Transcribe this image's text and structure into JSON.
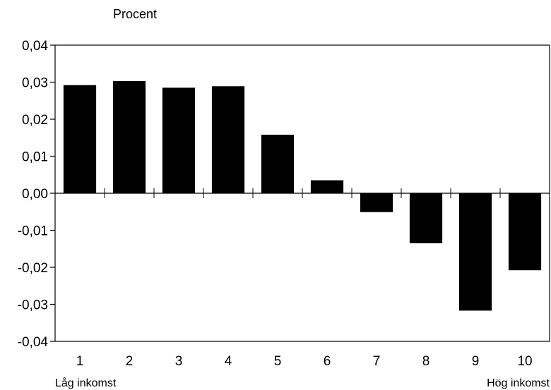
{
  "chart_data": {
    "type": "bar",
    "ylabel": "Procent",
    "categories": [
      "1",
      "2",
      "3",
      "4",
      "5",
      "6",
      "7",
      "8",
      "9",
      "10"
    ],
    "values": [
      0.0292,
      0.0303,
      0.0285,
      0.0289,
      0.0158,
      0.0035,
      -0.0051,
      -0.0135,
      -0.0317,
      -0.0208
    ],
    "ylim": [
      -0.04,
      0.04
    ],
    "yticks": [
      0.04,
      0.03,
      0.02,
      0.01,
      0.0,
      -0.01,
      -0.02,
      -0.03,
      -0.04
    ],
    "ytick_labels": [
      "0,04",
      "0,03",
      "0,02",
      "0,01",
      "0,00",
      "-0,01",
      "-0,02",
      "-0,03",
      "-0,04"
    ],
    "x_start_label": "Låg inkomst",
    "x_end_label": "Hög inkomst",
    "bar_color": "#000000",
    "grid": false,
    "legend": "none"
  }
}
